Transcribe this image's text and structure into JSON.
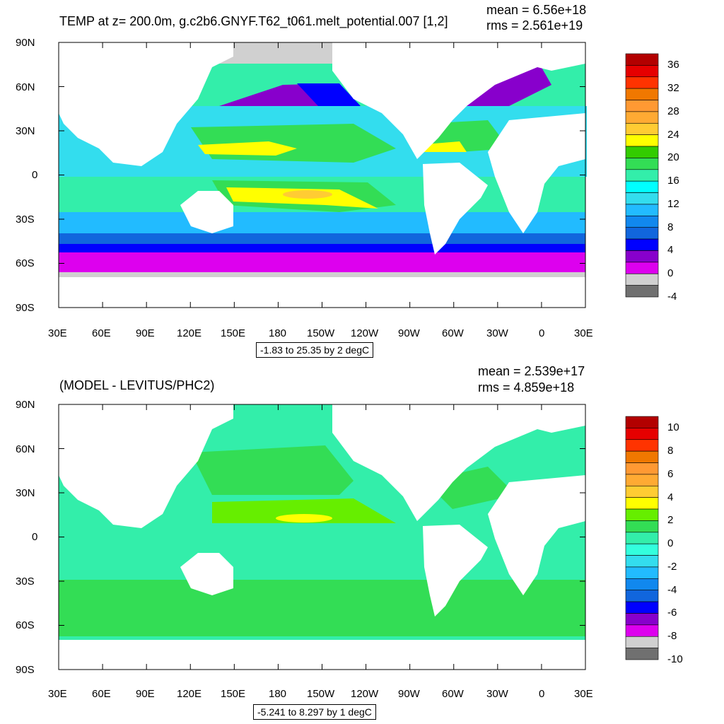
{
  "panels": [
    {
      "title": "TEMP at z= 200.0m, g.c2b6.GNYF.T62_t061.melt_potential.007 [1,2]",
      "mean_text": "mean = 6.56e+18",
      "rms_text": "rms = 2.561e+19",
      "range_text": "-1.83 to 25.35 by 2 degC",
      "colorbar": {
        "labels": [
          "36",
          "32",
          "28",
          "24",
          "20",
          "16",
          "12",
          "8",
          "4",
          "0",
          "-4"
        ],
        "colors": [
          "#b30000",
          "#e60000",
          "#ff3300",
          "#f07800",
          "#ff9933",
          "#ffaa33",
          "#ffcc33",
          "#ffff00",
          "#33cc00",
          "#33dd55",
          "#33eeaa",
          "#00ffff",
          "#33ddee",
          "#22bbff",
          "#1188ee",
          "#1166dd",
          "#0000ff",
          "#8800cc",
          "#dd00ee",
          "#d0d0d0",
          "#707070"
        ]
      }
    },
    {
      "title": "(MODEL - LEVITUS/PHC2)",
      "mean_text": "mean = 2.539e+17",
      "rms_text": "rms = 4.859e+18",
      "range_text": "-5.241 to 8.297 by 1 degC",
      "colorbar": {
        "labels": [
          "10",
          "8",
          "6",
          "4",
          "2",
          "0",
          "-2",
          "-4",
          "-6",
          "-8",
          "-10"
        ],
        "colors": [
          "#b30000",
          "#e60000",
          "#ff3300",
          "#f07800",
          "#ff9933",
          "#ffaa33",
          "#ffcc33",
          "#ffff00",
          "#66ee00",
          "#33dd55",
          "#33eeaa",
          "#33ffdd",
          "#33ddee",
          "#22bbff",
          "#1188ee",
          "#1166dd",
          "#0000ff",
          "#8800cc",
          "#dd00ee",
          "#d0d0d0",
          "#707070"
        ]
      }
    }
  ],
  "axes": {
    "lat_labels": [
      "90N",
      "60N",
      "30N",
      "0",
      "30S",
      "60S",
      "90S"
    ],
    "lon_labels": [
      "30E",
      "60E",
      "90E",
      "120E",
      "150E",
      "180",
      "150W",
      "120W",
      "90W",
      "60W",
      "30W",
      "0",
      "30E"
    ]
  },
  "colors": {
    "land": "#ffffff",
    "ocean_top_base": "#33eeaa",
    "ocean_bottom_base": "#33dd55"
  }
}
